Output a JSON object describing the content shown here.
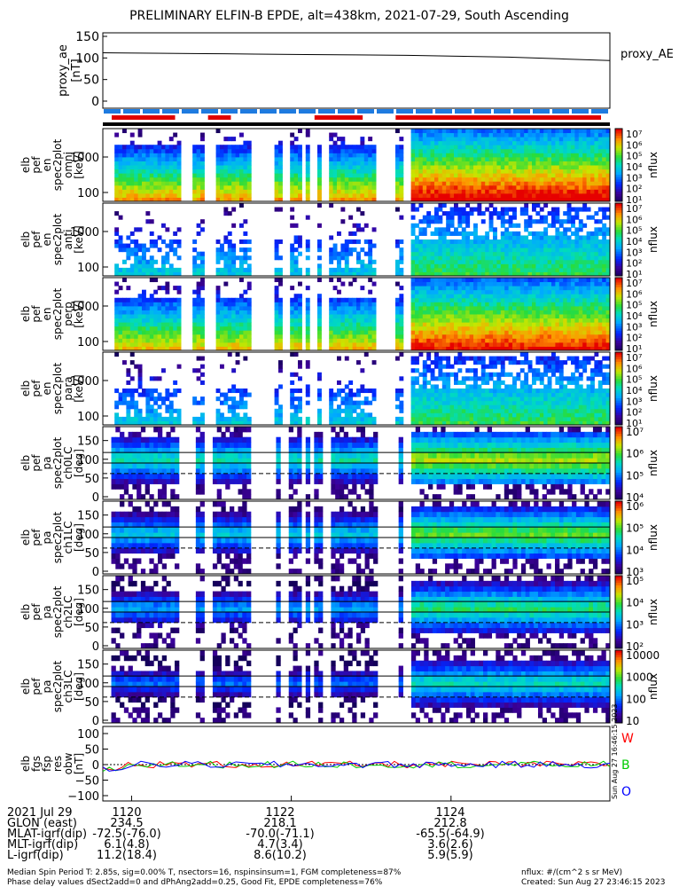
{
  "title": "PRELIMINARY ELFIN-B EPDE, alt=438km, 2021-07-29, South Ascending",
  "top_panel": {
    "ylabel_lines": [
      "proxy_ae",
      "[nT]"
    ],
    "yticks": [
      "150",
      "100",
      "50",
      "0"
    ],
    "right_label": "proxy_AE"
  },
  "spec_panels": [
    {
      "ylabel_lines": [
        "elb",
        "pef",
        "en",
        "spec2plot",
        "omni",
        "[keV]"
      ],
      "yticks": [
        "1000",
        "100"
      ],
      "cbar_ticks": [
        "10⁷",
        "10⁶",
        "10⁵",
        "10⁴",
        "10³",
        "10²",
        "10¹"
      ],
      "cbar_label": "nflux"
    },
    {
      "ylabel_lines": [
        "elb",
        "pef",
        "en",
        "spec2plot",
        "anti",
        "[keV]"
      ],
      "yticks": [
        "1000",
        "100"
      ],
      "cbar_ticks": [
        "10⁷",
        "10⁶",
        "10⁵",
        "10⁴",
        "10³",
        "10²",
        "10¹"
      ],
      "cbar_label": "nflux"
    },
    {
      "ylabel_lines": [
        "elb",
        "pef",
        "en",
        "spec2plot",
        "perp",
        "[keV]"
      ],
      "yticks": [
        "1000",
        "100"
      ],
      "cbar_ticks": [
        "10⁷",
        "10⁶",
        "10⁵",
        "10⁴",
        "10³",
        "10²",
        "10¹"
      ],
      "cbar_label": "nflux"
    },
    {
      "ylabel_lines": [
        "elb",
        "pef",
        "en",
        "spec2plot",
        "para",
        "[keV]"
      ],
      "yticks": [
        "1000",
        "100"
      ],
      "cbar_ticks": [
        "10⁷",
        "10⁶",
        "10⁵",
        "10⁴",
        "10³",
        "10²",
        "10¹"
      ],
      "cbar_label": "nflux"
    }
  ],
  "pa_panels": [
    {
      "ylabel_lines": [
        "elb",
        "pef",
        "pa",
        "spec2plot",
        "ch0LC",
        "[deg]"
      ],
      "yticks": [
        "150",
        "100",
        "50",
        "0"
      ],
      "cbar_ticks": [
        "10⁷",
        "10⁶",
        "10⁵",
        "10⁴"
      ],
      "cbar_label": "nflux"
    },
    {
      "ylabel_lines": [
        "elb",
        "pef",
        "pa",
        "spec2plot",
        "ch1LC",
        "[deg]"
      ],
      "yticks": [
        "150",
        "100",
        "50",
        "0"
      ],
      "cbar_ticks": [
        "10⁶",
        "10⁵",
        "10⁴",
        "10³"
      ],
      "cbar_label": "nflux"
    },
    {
      "ylabel_lines": [
        "elb",
        "pef",
        "pa",
        "spec2plot",
        "ch2LC",
        "[deg]"
      ],
      "yticks": [
        "150",
        "100",
        "50",
        "0"
      ],
      "cbar_ticks": [
        "10⁵",
        "10⁴",
        "10³",
        "10²"
      ],
      "cbar_label": "nflux"
    },
    {
      "ylabel_lines": [
        "elb",
        "pef",
        "pa",
        "spec2plot",
        "ch3LC",
        "[deg]"
      ],
      "yticks": [
        "150",
        "100",
        "50",
        "0"
      ],
      "cbar_ticks": [
        "10000",
        "1000",
        "100",
        "10"
      ],
      "cbar_label": "nflux"
    }
  ],
  "mag_panel": {
    "ylabel_lines": [
      "elb",
      "fgs",
      "fsp",
      "res",
      "obw",
      "[nT]"
    ],
    "yticks": [
      "100",
      "50",
      "0",
      "−50",
      "−100"
    ],
    "legend": [
      {
        "label": "W",
        "color": "#ff0000"
      },
      {
        "label": "B",
        "color": "#00cc00"
      },
      {
        "label": "O",
        "color": "#0000ff"
      }
    ],
    "stamp": "Sun Aug 27 16:46:15 2023"
  },
  "ephemeris": {
    "rows": [
      {
        "label": "2021 Jul 29",
        "values": [
          "1120",
          "1122",
          "1124"
        ]
      },
      {
        "label": "GLON (east)",
        "values": [
          "234.5",
          "218.1",
          "212.8"
        ]
      },
      {
        "label": "MLAT-igrf(dip)",
        "values": [
          "-72.5(-76.0)",
          "-70.0(-71.1)",
          "-65.5(-64.9)"
        ]
      },
      {
        "label": "MLT-igrf(dip)",
        "values": [
          "6.1(4.8)",
          "4.7(3.4)",
          "3.6(2.6)"
        ]
      },
      {
        "label": "L-igrf(dip)",
        "values": [
          "11.2(18.4)",
          "8.6(10.2)",
          "5.9(5.9)"
        ]
      }
    ]
  },
  "footer": {
    "line1": "Median Spin Period T: 2.85s, sig=0.00% T, nsectors=16, nspinsinsum=1, FGM completeness=87%",
    "line2": "Phase delay values dSect2add=0 and dPhAng2add=0.25, Good Fit, EPDE completeness=76%",
    "right1": "nflux: #/(cm^2 s sr MeV)",
    "right2": "Created: Sun Aug 27 23:46:15 2023"
  },
  "colors": {
    "blue_bar": "#1e7be0",
    "red_bar": "#e00000",
    "axis": "#000000"
  },
  "chart_data": {
    "type": "heatmap",
    "title": "PRELIMINARY ELFIN-B EPDE, alt=438km, 2021-07-29, South Ascending",
    "x_tick_labels": [
      "1120",
      "1122",
      "1124"
    ],
    "proxy_ae": {
      "ylabel": "proxy_ae [nT]",
      "ylim": [
        0,
        150
      ],
      "x": [
        0,
        0.1,
        0.2,
        0.3,
        0.4,
        0.5,
        0.6,
        0.7,
        0.8,
        0.9,
        1.0
      ],
      "values": [
        112,
        111,
        110,
        109,
        108,
        107,
        106,
        104,
        102,
        98,
        94
      ]
    },
    "data_segments": [
      [
        0.02,
        0.15
      ],
      [
        0.18,
        0.2
      ],
      [
        0.22,
        0.29
      ],
      [
        0.34,
        0.35
      ],
      [
        0.37,
        0.39
      ],
      [
        0.4,
        0.41
      ],
      [
        0.42,
        0.43
      ],
      [
        0.45,
        0.54
      ],
      [
        0.58,
        0.59
      ],
      [
        0.61,
        1.0
      ]
    ],
    "science_zone_segments": [
      [
        0.0,
        0.16
      ],
      [
        0.19,
        0.27
      ],
      [
        0.34,
        0.36
      ],
      [
        0.4,
        0.53
      ],
      [
        0.56,
        1.0
      ]
    ]
  }
}
